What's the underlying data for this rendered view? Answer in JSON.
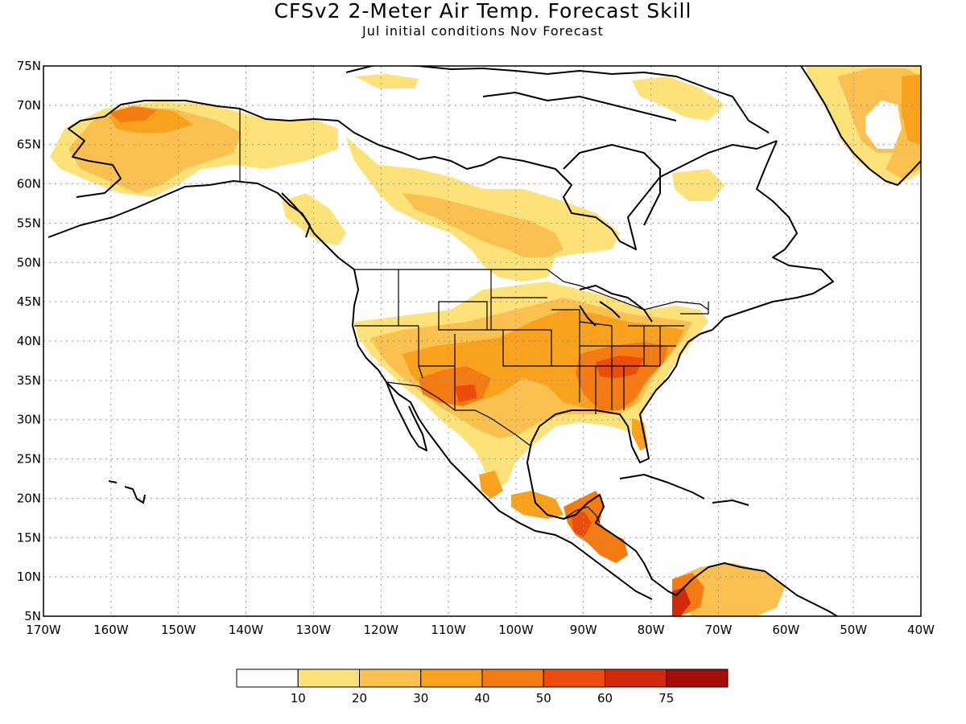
{
  "title": "CFSv2 2-Meter Air Temp. Forecast Skill",
  "subtitle": "Jul initial conditions  Nov Forecast",
  "map": {
    "lon_range": [
      -170,
      -40
    ],
    "lat_range": [
      5,
      75
    ],
    "lat_ticks": [
      "5N",
      "10N",
      "15N",
      "20N",
      "25N",
      "30N",
      "35N",
      "40N",
      "45N",
      "50N",
      "55N",
      "60N",
      "65N",
      "70N",
      "75N"
    ],
    "lon_ticks": [
      "170W",
      "160W",
      "150W",
      "140W",
      "130W",
      "120W",
      "110W",
      "100W",
      "90W",
      "80W",
      "70W",
      "60W",
      "50W",
      "40W"
    ],
    "grid": true,
    "coastline_color": "#000000"
  },
  "colorbar": {
    "labels": [
      "10",
      "20",
      "30",
      "40",
      "50",
      "60",
      "75"
    ],
    "colors": [
      "#ffffff",
      "#fde27a",
      "#fbc150",
      "#f9a21e",
      "#f47a12",
      "#ec4c0c",
      "#d12a0a",
      "#a60e0a"
    ]
  }
}
